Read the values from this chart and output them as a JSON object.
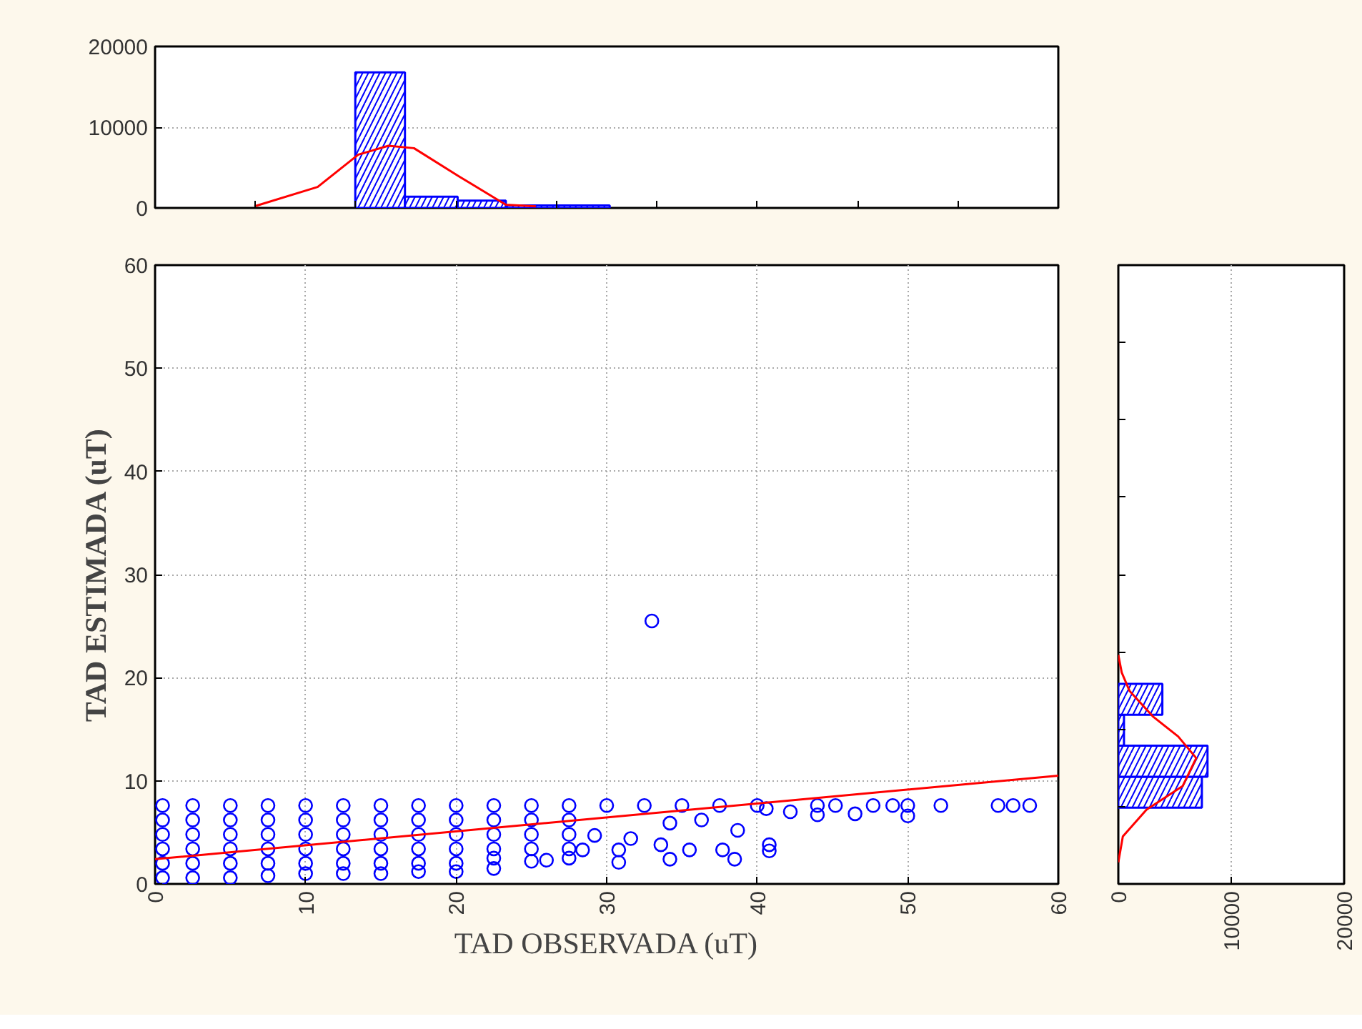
{
  "chart_data": [
    {
      "type": "histogram",
      "bins": [
        13.3,
        16.6,
        20.1,
        23.3,
        30.2
      ],
      "xlim": [
        0,
        60
      ],
      "xticks": [
        {
          "value": 0,
          "label": null
        },
        {
          "value": 6.67,
          "label": null
        },
        {
          "value": 13.33,
          "label": null
        },
        {
          "value": 20,
          "label": null
        },
        {
          "value": 26.67,
          "label": null
        },
        {
          "value": 33.33,
          "label": null
        },
        {
          "value": 40,
          "label": null
        },
        {
          "value": 46.67,
          "label": null
        },
        {
          "value": 53.33,
          "label": null
        },
        {
          "value": 60,
          "label": null
        }
      ],
      "ylim": [
        0,
        20000
      ],
      "yticks": [
        0,
        10000,
        20000
      ],
      "tick_labels": "y",
      "grid": "y",
      "series": [
        {
          "color": "#0000ff",
          "values": [
            16800,
            1400,
            900,
            300
          ]
        },
        {
          "type": "line",
          "color": "#ff0000",
          "x": [
            6.6,
            10.8,
            13.5,
            15.5,
            17.2,
            20.2,
            23.3,
            25.3
          ],
          "values": [
            200,
            2600,
            6600,
            7700,
            7400,
            3900,
            400,
            200
          ]
        }
      ]
    },
    {
      "type": "scatter",
      "xlabel": "TAD OBSERVADA (uT)",
      "ylabel": "TAD ESTIMADA (uT)",
      "xlim": [
        0,
        60
      ],
      "ylim": [
        0,
        60
      ],
      "xticks": [
        0,
        10,
        20,
        30,
        40,
        50,
        60
      ],
      "yticks": [
        0,
        10,
        20,
        30,
        40,
        50,
        60
      ],
      "grid": true,
      "series": [
        {
          "marker": "circle",
          "color": "#0000ff",
          "x": [
            0.5,
            0.5,
            0.5,
            0.5,
            0.5,
            0.5,
            2.5,
            2.5,
            2.5,
            2.5,
            2.5,
            2.5,
            5,
            5,
            5,
            5,
            5,
            5,
            7.5,
            7.5,
            7.5,
            7.5,
            7.5,
            7.5,
            10,
            10,
            10,
            10,
            10,
            10,
            12.5,
            12.5,
            12.5,
            12.5,
            12.5,
            12.5,
            15,
            15,
            15,
            15,
            15,
            15,
            17.5,
            17.5,
            17.5,
            17.5,
            17.5,
            17.5,
            20,
            20,
            20,
            20,
            20,
            20,
            22.5,
            22.5,
            22.5,
            22.5,
            22.5,
            22.5,
            25,
            25,
            25,
            25,
            25,
            27.5,
            27.5,
            27.5,
            27.5,
            27.5,
            30,
            32.5,
            35,
            37.5,
            40,
            44,
            45.2,
            47.7,
            49,
            50,
            52.2,
            56,
            57,
            58.1,
            50,
            46.5,
            44,
            42.2,
            40.6,
            38.7,
            36.3,
            34.2,
            31.6,
            29.2,
            40.8,
            40.8,
            38.5,
            37.7,
            35.5,
            34.2,
            33.6,
            30.8,
            30.8,
            28.4,
            26,
            33
          ],
          "values": [
            7.6,
            6.2,
            4.8,
            3.4,
            2,
            0.6,
            7.6,
            6.2,
            4.8,
            3.4,
            2,
            0.6,
            7.6,
            6.2,
            4.8,
            3.4,
            2,
            0.6,
            7.6,
            6.2,
            4.8,
            3.4,
            2,
            0.8,
            7.6,
            6.2,
            4.8,
            3.4,
            2,
            1,
            7.6,
            6.2,
            4.8,
            3.4,
            2,
            1,
            7.6,
            6.2,
            4.8,
            3.4,
            2,
            1,
            7.6,
            6.2,
            4.8,
            3.4,
            2,
            1.2,
            7.6,
            6.2,
            4.8,
            3.4,
            2,
            1.2,
            7.6,
            6.2,
            4.8,
            3.4,
            2.5,
            1.5,
            7.6,
            6.2,
            4.8,
            3.4,
            2.2,
            7.6,
            6.2,
            4.8,
            3.4,
            2.5,
            7.6,
            7.6,
            7.6,
            7.6,
            7.6,
            7.6,
            7.6,
            7.6,
            7.6,
            7.6,
            7.6,
            7.6,
            7.6,
            7.6,
            6.6,
            6.8,
            6.7,
            7,
            7.3,
            5.2,
            6.2,
            5.9,
            4.4,
            4.7,
            3.2,
            3.8,
            2.4,
            3.3,
            3.3,
            2.4,
            3.8,
            2.1,
            3.3,
            3.3,
            2.3,
            25.5
          ]
        },
        {
          "type": "line",
          "marker": "none",
          "color": "#ff0000",
          "x": [
            0,
            60
          ],
          "values": [
            2.4,
            10.5
          ]
        }
      ]
    },
    {
      "type": "histogram",
      "orientation": "horizontal",
      "bins": [
        7.4,
        10.4,
        13.4,
        16.4,
        19.4
      ],
      "xlim": [
        0,
        20000
      ],
      "xticks": [
        0,
        10000,
        20000
      ],
      "ylim": [
        0,
        60
      ],
      "yticks": [
        {
          "value": 0,
          "label": null
        },
        {
          "value": 7.5,
          "label": null
        },
        {
          "value": 15,
          "label": null
        },
        {
          "value": 22.5,
          "label": null
        },
        {
          "value": 30,
          "label": null
        },
        {
          "value": 37.5,
          "label": null
        },
        {
          "value": 45,
          "label": null
        },
        {
          "value": 52.5,
          "label": null
        },
        {
          "value": 60,
          "label": null
        }
      ],
      "tick_labels": "x",
      "grid": "x",
      "series": [
        {
          "color": "#0000ff",
          "values": [
            7400,
            7900,
            500,
            3900
          ]
        },
        {
          "type": "line",
          "color": "#ff0000",
          "x": [
            2.1,
            4.6,
            7.2,
            9.5,
            12.2,
            14.3,
            16.2,
            18.7,
            20.5,
            22.2
          ],
          "values": [
            0,
            400,
            2500,
            5700,
            6900,
            5300,
            3100,
            1000,
            300,
            0
          ]
        }
      ]
    }
  ]
}
